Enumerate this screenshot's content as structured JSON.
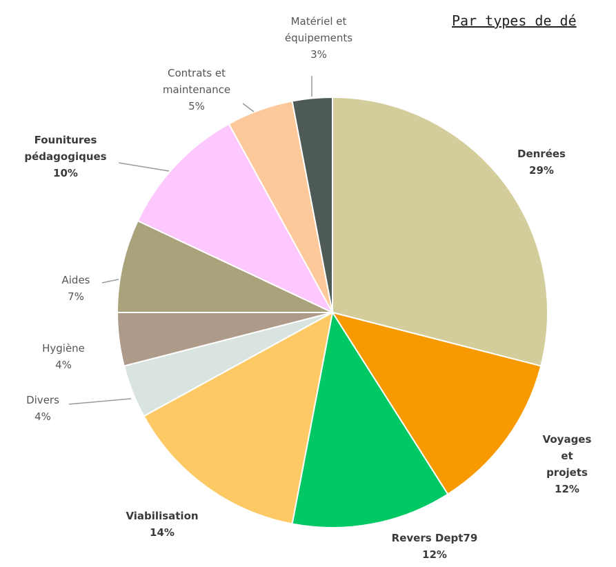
{
  "chart_data": {
    "type": "pie",
    "title": "Par types de dé",
    "categories": [
      "Denrées",
      "Voyages et\nprojets",
      "Revers Dept79",
      "Viabilisation",
      "Divers",
      "Hygiène",
      "Aides",
      "Founitures\npédagogiques",
      "Contrats et\nmaintenance",
      "Matériel et\néquipements"
    ],
    "values": [
      29,
      12,
      12,
      14,
      4,
      4,
      7,
      10,
      5,
      3
    ],
    "value_labels": [
      "29%",
      "12%",
      "12%",
      "14%",
      "4%",
      "4%",
      "7%",
      "10%",
      "5%",
      "3%"
    ],
    "colors": [
      "#d3cc9b",
      "#f79a00",
      "#00c864",
      "#fdc965",
      "#d9e4e0",
      "#ad9a88",
      "#aaa27a",
      "#fdc8fd",
      "#fdc99a",
      "#4e5a55"
    ]
  }
}
